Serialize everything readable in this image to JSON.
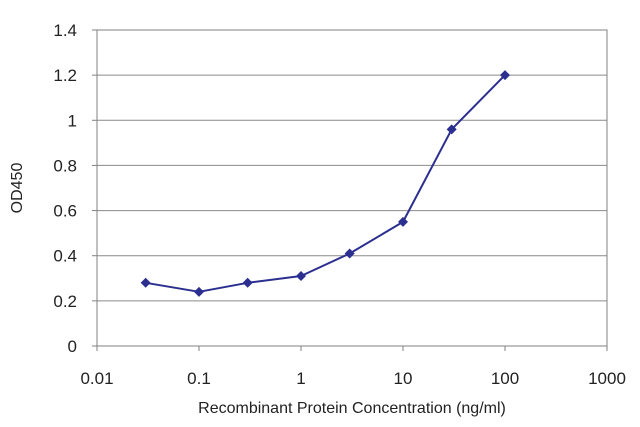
{
  "chart_data": {
    "type": "line",
    "title": "",
    "xlabel": "Recombinant Protein Concentration (ng/ml)",
    "ylabel": "OD450",
    "x_scale": "log",
    "xlim": [
      0.01,
      1000
    ],
    "ylim": [
      0,
      1.4
    ],
    "x_ticks": [
      "0.01",
      "0.1",
      "1",
      "10",
      "100",
      "1000"
    ],
    "y_ticks": [
      "0",
      "0.2",
      "0.4",
      "0.6",
      "0.8",
      "1",
      "1.2",
      "1.4"
    ],
    "grid": "horizontal",
    "legend": "none",
    "series": [
      {
        "x": [
          0.03,
          0.1,
          0.3,
          1,
          3,
          10,
          30,
          100
        ],
        "y": [
          0.28,
          0.24,
          0.28,
          0.31,
          0.41,
          0.55,
          0.96,
          1.2
        ],
        "color": "#2b2f8f"
      }
    ]
  }
}
